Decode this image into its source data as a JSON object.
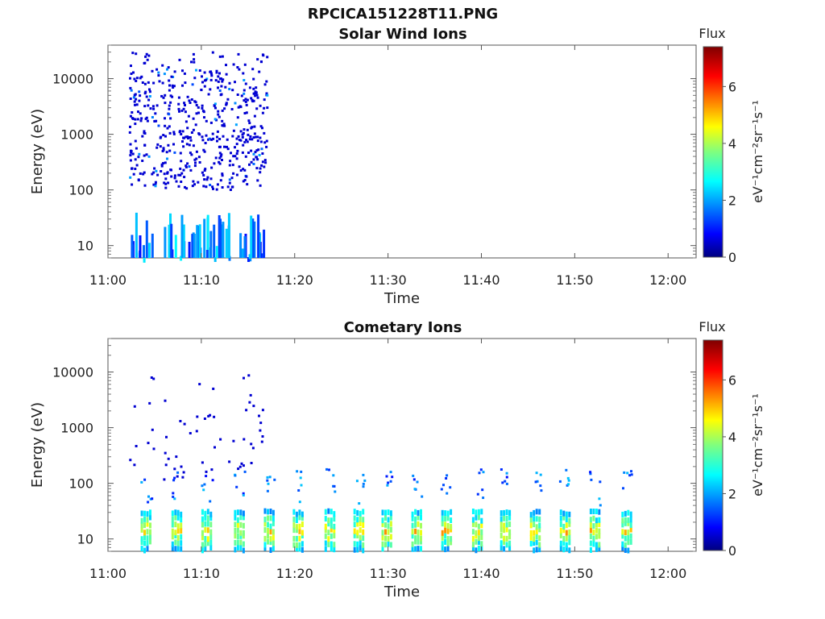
{
  "figure": {
    "title": "RPCICA151228T11.PNG"
  },
  "colors": {
    "colormap": "jet",
    "frame": "#555555",
    "background": "#ffffff"
  },
  "chart_data": [
    {
      "type": "heatmap",
      "title": "Solar Wind Ions",
      "xlabel": "Time",
      "ylabel": "Energy (eV)",
      "yscale": "log",
      "x_ticks": [
        "11:00",
        "11:10",
        "11:20",
        "11:30",
        "11:40",
        "11:50",
        "12:00"
      ],
      "x_range_min": [
        0,
        63
      ],
      "y_ticks": [
        10,
        100,
        1000,
        10000
      ],
      "y_range_eV": [
        6,
        40000
      ],
      "data_x_range_min": [
        2.2,
        17
      ],
      "colorbar": {
        "label": "Flux",
        "units": "eV⁻¹cm⁻²sr⁻¹s⁻¹",
        "ticks": [
          0,
          2,
          4,
          6
        ],
        "range": [
          0,
          7.4
        ]
      },
      "description_points": {
        "dense_band_eV": [
          100,
          15000
        ],
        "typical_flux": 0.6,
        "low_energy_streaks_eV": [
          6,
          40
        ],
        "low_energy_flux": 2.0
      }
    },
    {
      "type": "heatmap",
      "title": "Cometary Ions",
      "xlabel": "Time",
      "ylabel": "Energy (eV)",
      "yscale": "log",
      "x_ticks": [
        "11:00",
        "11:10",
        "11:20",
        "11:30",
        "11:40",
        "11:50",
        "12:00"
      ],
      "x_range_min": [
        0,
        63
      ],
      "y_ticks": [
        10,
        100,
        1000,
        10000
      ],
      "y_range_eV": [
        6,
        40000
      ],
      "data_x_range_min": [
        2.2,
        17
      ],
      "colorbar": {
        "label": "Flux",
        "units": "eV⁻¹cm⁻²sr⁻¹s⁻¹",
        "ticks": [
          0,
          2,
          4,
          6
        ],
        "range": [
          0,
          7.4
        ]
      },
      "description_points": {
        "burst_times_min": [
          4.0,
          7.3,
          10.5,
          14.0,
          17.2,
          20.3,
          23.7,
          26.8,
          29.8,
          33.0,
          36.2,
          39.5,
          42.5,
          45.7,
          48.9,
          52.1,
          55.5
        ],
        "burst_energy_eV": [
          6,
          35
        ],
        "burst_peak_flux": 5.0,
        "scattered_high_energy_eV": [
          100,
          10000
        ]
      }
    }
  ]
}
